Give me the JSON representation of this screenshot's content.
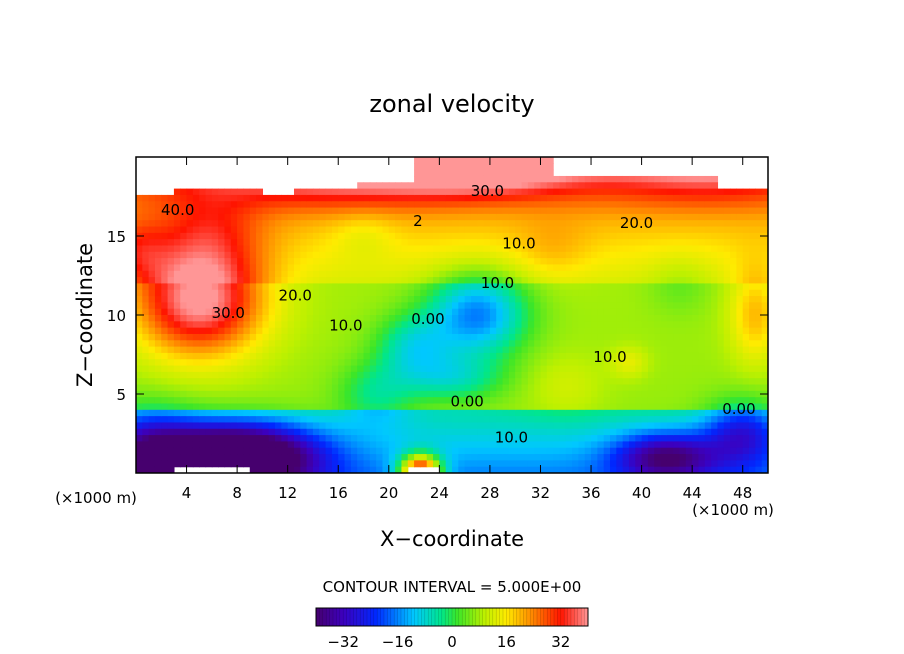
{
  "chart_data": {
    "type": "heatmap",
    "title": "zonal velocity",
    "xlabel": "X−coordinate",
    "ylabel": "Z−coordinate",
    "x_unit_left": "(×1000 m)",
    "x_unit_right": "(×1000 m)",
    "xlim": [
      0,
      50
    ],
    "ylim": [
      0,
      20
    ],
    "x_ticks": [
      4,
      8,
      12,
      16,
      20,
      24,
      28,
      32,
      36,
      40,
      44,
      48
    ],
    "y_ticks": [
      5,
      10,
      15
    ],
    "contour_interval_text": "CONTOUR INTERVAL = 5.000E+00",
    "colorbar": {
      "min": -40,
      "max": 40,
      "ticks": [
        -32,
        -16,
        0,
        16,
        32
      ]
    },
    "contour_labels": [
      {
        "text": "40.0",
        "x": 3.3,
        "y": 16.7
      },
      {
        "text": "30.0",
        "x": 27.8,
        "y": 17.9
      },
      {
        "text": "30.0",
        "x": 7.3,
        "y": 10.2
      },
      {
        "text": "20.0",
        "x": 39.6,
        "y": 15.9
      },
      {
        "text": "20.0",
        "x": 12.6,
        "y": 11.3
      },
      {
        "text": "10.0",
        "x": 30.3,
        "y": 14.6
      },
      {
        "text": "10.0",
        "x": 28.6,
        "y": 12.1
      },
      {
        "text": "10.0",
        "x": 16.6,
        "y": 9.4
      },
      {
        "text": "10.0",
        "x": 37.5,
        "y": 7.4
      },
      {
        "text": "10.0",
        "x": 29.7,
        "y": 2.3
      },
      {
        "text": "0.00",
        "x": 23.1,
        "y": 9.8
      },
      {
        "text": "0.00",
        "x": 26.2,
        "y": 4.6
      },
      {
        "text": "0.00",
        "x": 47.7,
        "y": 4.1
      },
      {
        "text": "2",
        "x": 22.3,
        "y": 16.0
      }
    ],
    "velocity_features": [
      {
        "x": 5,
        "z": 11,
        "value": 34,
        "sx": 5,
        "sz": 3.5
      },
      {
        "x": 6,
        "z": 15.5,
        "value": 8,
        "sx": 4,
        "sz": 2.5
      },
      {
        "x": 0,
        "z": 14,
        "value": 10,
        "sx": 2.5,
        "sz": 2
      },
      {
        "x": 15,
        "z": 19,
        "value": 14,
        "sx": 10,
        "sz": 2
      },
      {
        "x": 27,
        "z": 19,
        "value": 18,
        "sx": 8,
        "sz": 1.5
      },
      {
        "x": 45,
        "z": 19,
        "value": 10,
        "sx": 8,
        "sz": 2
      },
      {
        "x": 8,
        "z": 1,
        "value": -52,
        "sx": 6,
        "sz": 2
      },
      {
        "x": 1,
        "z": 1.5,
        "value": -22,
        "sx": 4,
        "sz": 2.5
      },
      {
        "x": 42,
        "z": 1,
        "value": -28,
        "sx": 4,
        "sz": 1.5
      },
      {
        "x": 48,
        "z": 2.5,
        "value": -20,
        "sx": 3,
        "sz": 2
      },
      {
        "x": 27,
        "z": 10,
        "value": -24,
        "sx": 3.8,
        "sz": 2.6
      },
      {
        "x": 22,
        "z": 8,
        "value": -14,
        "sx": 3,
        "sz": 2
      },
      {
        "x": 25,
        "z": 6,
        "value": -12,
        "sx": 4,
        "sz": 1.5
      },
      {
        "x": 19,
        "z": 5,
        "value": -10,
        "sx": 3,
        "sz": 2
      },
      {
        "x": 22.5,
        "z": 0,
        "value": 55,
        "sx": 1.6,
        "sz": 1.1
      },
      {
        "x": 18,
        "z": 15,
        "value": -4,
        "sx": 2.5,
        "sz": 1.5
      },
      {
        "x": 43,
        "z": 12,
        "value": -4,
        "sx": 2.5,
        "sz": 2
      },
      {
        "x": 39,
        "z": 7,
        "value": 6,
        "sx": 1.5,
        "sz": 1
      },
      {
        "x": 49,
        "z": 10,
        "value": 12,
        "sx": 2,
        "sz": 3
      },
      {
        "x": 34,
        "z": 5.5,
        "value": 4,
        "sx": 3,
        "sz": 2
      },
      {
        "x": 33,
        "z": 14,
        "value": 4,
        "sx": 3,
        "sz": 2
      }
    ]
  }
}
